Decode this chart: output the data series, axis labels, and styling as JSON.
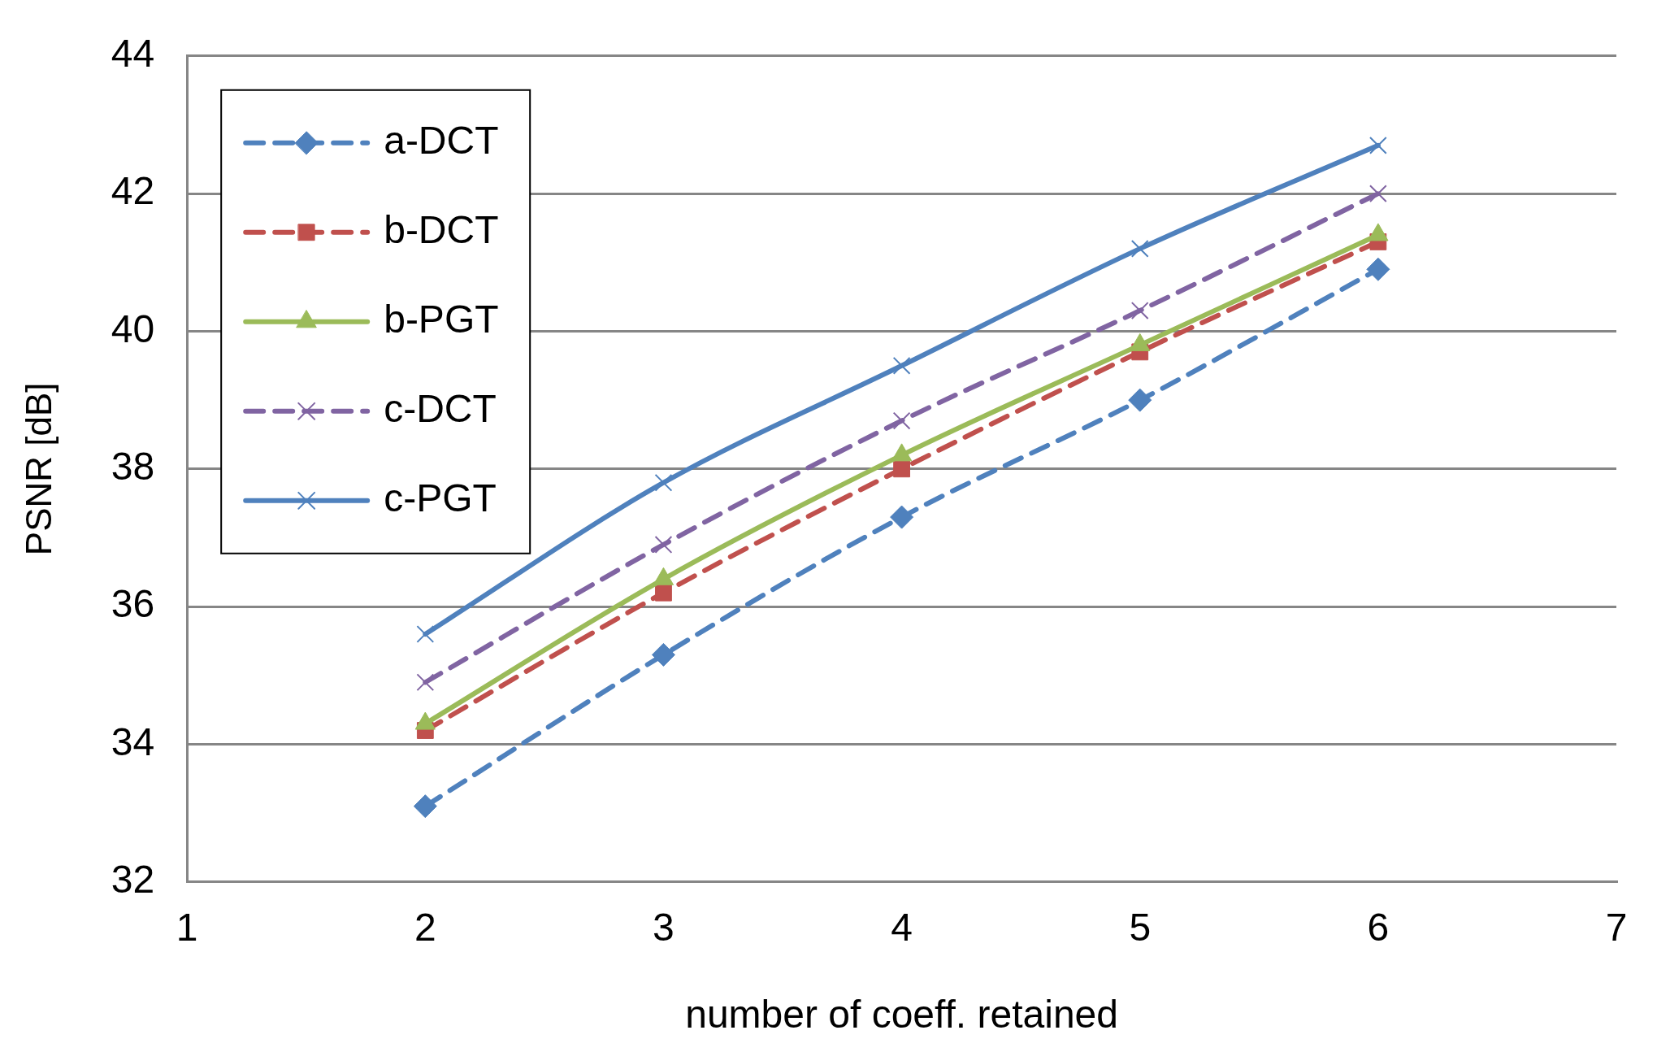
{
  "chart_data": {
    "type": "line",
    "xlabel": "number of coeff. retained",
    "ylabel": "PSNR [dB]",
    "x": [
      2,
      3,
      4,
      5,
      6
    ],
    "xlim": [
      1,
      7
    ],
    "xticks": [
      1,
      2,
      3,
      4,
      5,
      6,
      7
    ],
    "ylim": [
      32,
      44
    ],
    "yticks": [
      32,
      34,
      36,
      38,
      40,
      42,
      44
    ],
    "grid": "y",
    "legend": "top left",
    "series": [
      {
        "name": "a-DCT",
        "color": "#4f81bd",
        "marker": "diamond",
        "line_style": "dashed",
        "values": [
          33.1,
          35.3,
          37.3,
          39.0,
          40.9
        ]
      },
      {
        "name": "b-DCT",
        "color": "#c0504d",
        "marker": "square",
        "line_style": "dashed",
        "values": [
          34.2,
          36.2,
          38.0,
          39.7,
          41.3
        ]
      },
      {
        "name": "b-PGT",
        "color": "#9bbb59",
        "marker": "triangle",
        "line_style": "solid",
        "values": [
          34.3,
          36.4,
          38.2,
          39.8,
          41.4
        ]
      },
      {
        "name": "c-DCT",
        "color": "#8064a2",
        "marker": "cross",
        "line_style": "dashed",
        "values": [
          34.9,
          36.9,
          38.7,
          40.3,
          42.0
        ]
      },
      {
        "name": "c-PGT",
        "color": "#4f81bd",
        "marker": "cross",
        "line_style": "solid",
        "values": [
          35.6,
          37.8,
          39.5,
          41.2,
          42.7
        ]
      }
    ]
  }
}
